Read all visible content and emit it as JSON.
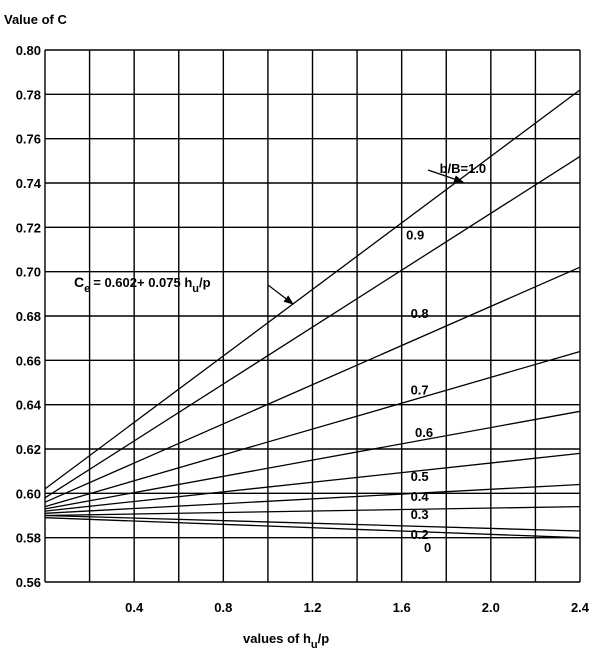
{
  "chart_data": {
    "type": "line",
    "ylabel": "Value of C",
    "xlabel_prefix": "values of h",
    "xlabel_sub": "u",
    "xlabel_suffix": "/p",
    "xlim": [
      0,
      2.4
    ],
    "ylim": [
      0.56,
      0.8
    ],
    "grid": true,
    "x_ticks": [
      "0.4",
      "0.8",
      "1.2",
      "1.6",
      "2.0",
      "2.4"
    ],
    "y_ticks": [
      "0.56",
      "0.58",
      "0.60",
      "0.62",
      "0.64",
      "0.66",
      "0.68",
      "0.70",
      "0.72",
      "0.74",
      "0.76",
      "0.78",
      "0.80"
    ],
    "series": [
      {
        "name": "b/B=1.0",
        "x": [
          0,
          2.4
        ],
        "y": [
          0.602,
          0.782
        ]
      },
      {
        "name": "0.9",
        "x": [
          0,
          2.4
        ],
        "y": [
          0.598,
          0.752
        ]
      },
      {
        "name": "0.8",
        "x": [
          0,
          2.4
        ],
        "y": [
          0.596,
          0.702
        ]
      },
      {
        "name": "0.7",
        "x": [
          0,
          2.4
        ],
        "y": [
          0.594,
          0.664
        ]
      },
      {
        "name": "0.6",
        "x": [
          0,
          2.4
        ],
        "y": [
          0.593,
          0.637
        ]
      },
      {
        "name": "0.5",
        "x": [
          0,
          2.4
        ],
        "y": [
          0.592,
          0.618
        ]
      },
      {
        "name": "0.4",
        "x": [
          0,
          2.4
        ],
        "y": [
          0.591,
          0.604
        ]
      },
      {
        "name": "0.3",
        "x": [
          0,
          2.4
        ],
        "y": [
          0.59,
          0.594
        ]
      },
      {
        "name": "0.2",
        "x": [
          0,
          2.4
        ],
        "y": [
          0.59,
          0.583
        ]
      },
      {
        "name": "0",
        "x": [
          0,
          2.4
        ],
        "y": [
          0.589,
          0.58
        ]
      }
    ],
    "annotation": {
      "c_letter": "C",
      "e_sub": "e",
      "eq_part1": "= 0.602+ 0.075 h",
      "u_sub": "u",
      "eq_part2": "/p"
    }
  }
}
